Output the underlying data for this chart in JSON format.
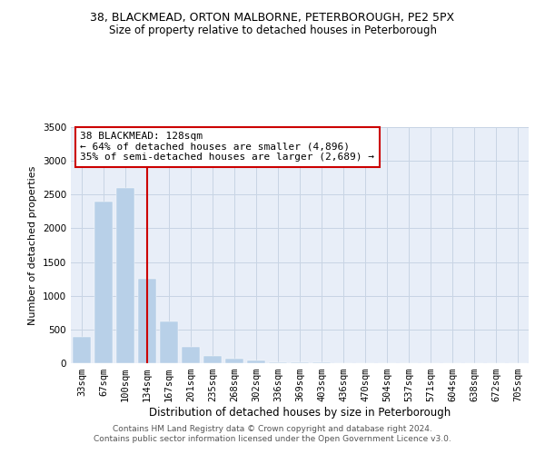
{
  "title": "38, BLACKMEAD, ORTON MALBORNE, PETERBOROUGH, PE2 5PX",
  "subtitle": "Size of property relative to detached houses in Peterborough",
  "xlabel": "Distribution of detached houses by size in Peterborough",
  "ylabel": "Number of detached properties",
  "footer_line1": "Contains HM Land Registry data © Crown copyright and database right 2024.",
  "footer_line2": "Contains public sector information licensed under the Open Government Licence v3.0.",
  "annotation_title": "38 BLACKMEAD: 128sqm",
  "annotation_line2": "← 64% of detached houses are smaller (4,896)",
  "annotation_line3": "35% of semi-detached houses are larger (2,689) →",
  "marker_bin_index": 3,
  "categories": [
    "33sqm",
    "67sqm",
    "100sqm",
    "134sqm",
    "167sqm",
    "201sqm",
    "235sqm",
    "268sqm",
    "302sqm",
    "336sqm",
    "369sqm",
    "403sqm",
    "436sqm",
    "470sqm",
    "504sqm",
    "537sqm",
    "571sqm",
    "604sqm",
    "638sqm",
    "672sqm",
    "705sqm"
  ],
  "values": [
    390,
    2400,
    2600,
    1250,
    620,
    245,
    110,
    65,
    38,
    20,
    12,
    8,
    5,
    3,
    2,
    1,
    1,
    1,
    0,
    0,
    0
  ],
  "bar_color": "#b8d0e8",
  "marker_color": "#cc0000",
  "background_color": "#ffffff",
  "plot_bg_color": "#e8eef8",
  "grid_color": "#c8d4e4",
  "ylim": [
    0,
    3500
  ],
  "yticks": [
    0,
    500,
    1000,
    1500,
    2000,
    2500,
    3000,
    3500
  ],
  "title_fontsize": 9,
  "subtitle_fontsize": 8.5,
  "ylabel_fontsize": 8,
  "xlabel_fontsize": 8.5,
  "tick_fontsize": 7.5,
  "annot_fontsize": 8,
  "footer_fontsize": 6.5
}
